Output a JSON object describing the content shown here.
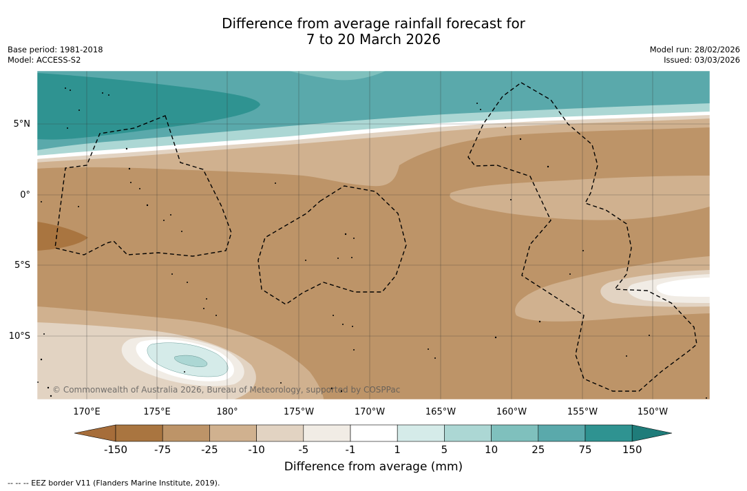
{
  "title": {
    "line1": "Difference from average rainfall forecast for",
    "line2": "7 to 20 March 2026"
  },
  "meta_left": {
    "base_period": "Base period: 1981-2018",
    "model": "Model: ACCESS-S2"
  },
  "meta_right": {
    "model_run": "Model run: 28/02/2026",
    "issued": "Issued: 03/03/2026"
  },
  "map": {
    "latitude_labels": [
      "5°N",
      "0°",
      "5°S",
      "10°S"
    ],
    "longitude_labels": [
      "170°E",
      "175°E",
      "180°",
      "175°W",
      "170°W",
      "165°W",
      "160°W",
      "155°W",
      "150°W"
    ],
    "copyright": "© Commonwealth of Australia 2026, Bureau of Meteorology, supported by COSPPac"
  },
  "colorbar": {
    "tick_labels": [
      "-150",
      "-75",
      "-25",
      "-10",
      "-5",
      "-1",
      "1",
      "5",
      "10",
      "25",
      "75",
      "150"
    ],
    "colors": [
      "#a66d3a",
      "#a97540",
      "#bd9468",
      "#d0b18f",
      "#e2d3c2",
      "#f1ece5",
      "#ffffff",
      "#d5ebe9",
      "#acd7d4",
      "#7fc0bd",
      "#5aa9ab",
      "#2f9391",
      "#1f7c7a"
    ],
    "title": "Difference from average (mm)"
  },
  "footnote": "--  --  -- EEZ border V11 (Flanders Marine Institute, 2019)."
}
